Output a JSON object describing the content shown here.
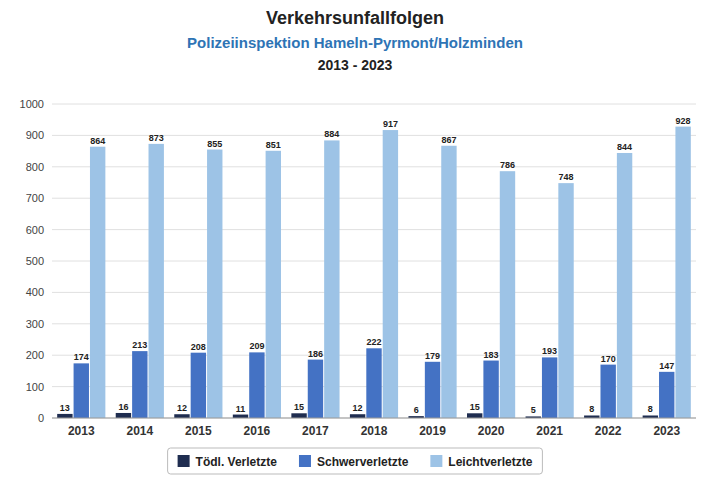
{
  "chart_data": {
    "type": "bar",
    "title": "Verkehrsunfallfolgen",
    "subtitle": "Polizeiinspektion Hameln-Pyrmont/Holzminden",
    "annotations": [
      "2013 - 2023"
    ],
    "categories": [
      "2013",
      "2014",
      "2015",
      "2016",
      "2017",
      "2018",
      "2019",
      "2020",
      "2021",
      "2022",
      "2023"
    ],
    "series": [
      {
        "name": "Tödl. Verletzte",
        "color": "#1f2d50",
        "values": [
          13,
          16,
          12,
          11,
          15,
          12,
          6,
          15,
          5,
          8,
          8
        ]
      },
      {
        "name": "Schwerverletzte",
        "color": "#4472c4",
        "values": [
          174,
          213,
          208,
          209,
          186,
          222,
          179,
          183,
          193,
          170,
          147
        ]
      },
      {
        "name": "Leichtverletzte",
        "color": "#9dc3e6",
        "values": [
          864,
          873,
          855,
          851,
          884,
          917,
          867,
          786,
          748,
          844,
          928
        ]
      }
    ],
    "ylim": [
      0,
      1000
    ],
    "yticks": [
      0,
      100,
      200,
      300,
      400,
      500,
      600,
      700,
      800,
      900,
      1000
    ],
    "grid": true,
    "legend": "bottom",
    "data_labels": true
  }
}
